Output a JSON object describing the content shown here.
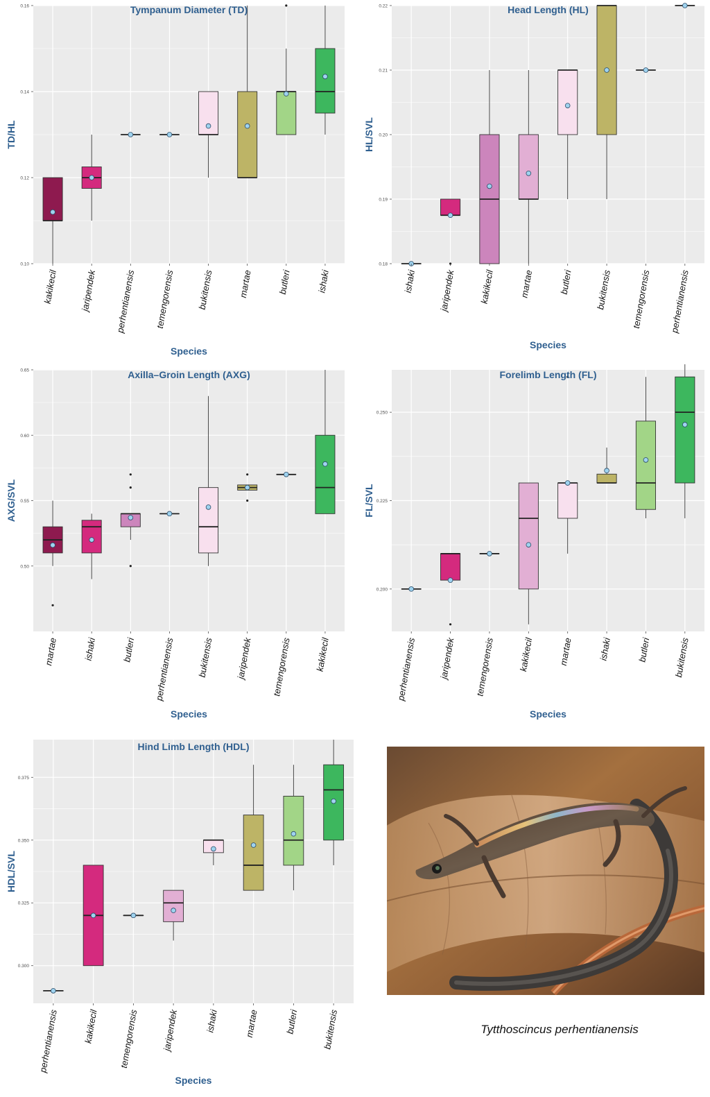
{
  "colors": {
    "panel_bg": "#EBEBEB",
    "grid": "#FFFFFF",
    "title": "#2F5F8F",
    "box_fill": [
      "#8E1A4F",
      "#D42A7E",
      "#CC85BC",
      "#E2AFD4",
      "#F8E0EE",
      "#BDB466",
      "#A2D587",
      "#3DB75E"
    ],
    "mean_point": "#9FD3EF",
    "outlier": "#222222"
  },
  "chart_data": [
    {
      "type": "box",
      "title": "Tympanum Diameter (TD)",
      "xlabel": "Species",
      "ylabel": "TD/HL",
      "ylim": [
        0.1,
        0.16
      ],
      "yticks": [
        0.1,
        0.12,
        0.14,
        0.16
      ],
      "ytick_labels": [
        "0.10",
        "0.12",
        "0.14",
        "0.16"
      ],
      "grid": true,
      "categories": [
        "kakikecil",
        "jaripendek",
        "perhentianensis",
        "temengorensis",
        "bukitensis",
        "martae",
        "butleri",
        "ishaki"
      ],
      "boxes": [
        {
          "min": 0.1,
          "q1": 0.11,
          "median": 0.11,
          "q3": 0.12,
          "max": 0.12,
          "mean": 0.112,
          "outliers": [],
          "color": "#8E1A4F"
        },
        {
          "min": 0.11,
          "q1": 0.1175,
          "median": 0.12,
          "q3": 0.1225,
          "max": 0.13,
          "mean": 0.12,
          "outliers": [],
          "color": "#D42A7E"
        },
        {
          "min": 0.13,
          "q1": 0.13,
          "median": 0.13,
          "q3": 0.13,
          "max": 0.13,
          "mean": 0.13,
          "outliers": [],
          "color": "#CC85BC"
        },
        {
          "min": 0.13,
          "q1": 0.13,
          "median": 0.13,
          "q3": 0.13,
          "max": 0.13,
          "mean": 0.13,
          "outliers": [],
          "color": "#E2AFD4"
        },
        {
          "min": 0.12,
          "q1": 0.13,
          "median": 0.13,
          "q3": 0.14,
          "max": 0.14,
          "mean": 0.132,
          "outliers": [],
          "color": "#F8E0EE"
        },
        {
          "min": 0.12,
          "q1": 0.12,
          "median": 0.12,
          "q3": 0.14,
          "max": 0.16,
          "mean": 0.132,
          "outliers": [],
          "color": "#BDB466"
        },
        {
          "min": 0.13,
          "q1": 0.13,
          "median": 0.14,
          "q3": 0.14,
          "max": 0.15,
          "mean": 0.1395,
          "outliers": [
            0.16
          ],
          "color": "#A2D587"
        },
        {
          "min": 0.13,
          "q1": 0.135,
          "median": 0.14,
          "q3": 0.15,
          "max": 0.16,
          "mean": 0.1435,
          "outliers": [],
          "color": "#3DB75E"
        }
      ]
    },
    {
      "type": "box",
      "title": "Head Length (HL)",
      "xlabel": "Species",
      "ylabel": "HL/SVL",
      "ylim": [
        0.18,
        0.22
      ],
      "yticks": [
        0.18,
        0.19,
        0.2,
        0.21,
        0.22
      ],
      "ytick_labels": [
        "0.18",
        "0.19",
        "0.20",
        "0.21",
        "0.22"
      ],
      "grid": true,
      "categories": [
        "ishaki",
        "jaripendek",
        "kakikecil",
        "martae",
        "butleri",
        "bukitensis",
        "temengorensis",
        "perhentianensis"
      ],
      "boxes": [
        {
          "min": 0.18,
          "q1": 0.18,
          "median": 0.18,
          "q3": 0.18,
          "max": 0.18,
          "mean": 0.18,
          "outliers": [],
          "color": "#8E1A4F"
        },
        {
          "min": 0.1875,
          "q1": 0.1875,
          "median": 0.1875,
          "q3": 0.19,
          "max": 0.19,
          "mean": 0.1875,
          "outliers": [
            0.18
          ],
          "color": "#D42A7E"
        },
        {
          "min": 0.18,
          "q1": 0.18,
          "median": 0.19,
          "q3": 0.2,
          "max": 0.21,
          "mean": 0.192,
          "outliers": [],
          "color": "#CC85BC"
        },
        {
          "min": 0.18,
          "q1": 0.19,
          "median": 0.19,
          "q3": 0.2,
          "max": 0.21,
          "mean": 0.194,
          "outliers": [],
          "color": "#E2AFD4"
        },
        {
          "min": 0.19,
          "q1": 0.2,
          "median": 0.21,
          "q3": 0.21,
          "max": 0.21,
          "mean": 0.2045,
          "outliers": [],
          "color": "#F8E0EE"
        },
        {
          "min": 0.19,
          "q1": 0.2,
          "median": 0.22,
          "q3": 0.22,
          "max": 0.22,
          "mean": 0.21,
          "outliers": [],
          "color": "#BDB466"
        },
        {
          "min": 0.21,
          "q1": 0.21,
          "median": 0.21,
          "q3": 0.21,
          "max": 0.21,
          "mean": 0.21,
          "outliers": [],
          "color": "#A2D587"
        },
        {
          "min": 0.22,
          "q1": 0.22,
          "median": 0.22,
          "q3": 0.22,
          "max": 0.22,
          "mean": 0.22,
          "outliers": [],
          "color": "#3DB75E"
        }
      ]
    },
    {
      "type": "box",
      "title": "Axilla–Groin Length (AXG)",
      "xlabel": "Species",
      "ylabel": "AXG/SVL",
      "ylim": [
        0.45,
        0.65
      ],
      "yticks": [
        0.5,
        0.55,
        0.6,
        0.65
      ],
      "ytick_labels": [
        "0.50",
        "0.55",
        "0.60",
        "0.65"
      ],
      "grid": true,
      "categories": [
        "martae",
        "ishaki",
        "butleri",
        "perhentianensis",
        "bukitensis",
        "jaripendek",
        "temengorensis",
        "kakikecil"
      ],
      "boxes": [
        {
          "min": 0.5,
          "q1": 0.51,
          "median": 0.52,
          "q3": 0.53,
          "max": 0.55,
          "mean": 0.516,
          "outliers": [
            0.47
          ],
          "color": "#8E1A4F"
        },
        {
          "min": 0.49,
          "q1": 0.51,
          "median": 0.53,
          "q3": 0.535,
          "max": 0.54,
          "mean": 0.52,
          "outliers": [],
          "color": "#D42A7E"
        },
        {
          "min": 0.52,
          "q1": 0.53,
          "median": 0.54,
          "q3": 0.54,
          "max": 0.54,
          "mean": 0.537,
          "outliers": [
            0.57,
            0.56,
            0.5
          ],
          "color": "#CC85BC"
        },
        {
          "min": 0.54,
          "q1": 0.54,
          "median": 0.54,
          "q3": 0.54,
          "max": 0.54,
          "mean": 0.54,
          "outliers": [],
          "color": "#E2AFD4"
        },
        {
          "min": 0.5,
          "q1": 0.51,
          "median": 0.53,
          "q3": 0.56,
          "max": 0.63,
          "mean": 0.545,
          "outliers": [],
          "color": "#F8E0EE"
        },
        {
          "min": 0.558,
          "q1": 0.558,
          "median": 0.56,
          "q3": 0.562,
          "max": 0.562,
          "mean": 0.56,
          "outliers": [
            0.57,
            0.55
          ],
          "color": "#BDB466"
        },
        {
          "min": 0.57,
          "q1": 0.57,
          "median": 0.57,
          "q3": 0.57,
          "max": 0.57,
          "mean": 0.57,
          "outliers": [],
          "color": "#A2D587"
        },
        {
          "min": 0.54,
          "q1": 0.54,
          "median": 0.56,
          "q3": 0.6,
          "max": 0.65,
          "mean": 0.578,
          "outliers": [],
          "color": "#3DB75E"
        }
      ]
    },
    {
      "type": "box",
      "title": "Forelimb Length (FL)",
      "xlabel": "Species",
      "ylabel": "FL/SVL",
      "ylim": [
        0.188,
        0.262
      ],
      "yticks": [
        0.2,
        0.225,
        0.25
      ],
      "ytick_labels": [
        "0.200",
        "0.225",
        "0.250"
      ],
      "grid": true,
      "categories": [
        "perhentianensis",
        "jaripendek",
        "temengorensis",
        "kakikecil",
        "martae",
        "ishaki",
        "butleri",
        "bukitensis"
      ],
      "boxes": [
        {
          "min": 0.2,
          "q1": 0.2,
          "median": 0.2,
          "q3": 0.2,
          "max": 0.2,
          "mean": 0.2,
          "outliers": [],
          "color": "#8E1A4F"
        },
        {
          "min": 0.2025,
          "q1": 0.2025,
          "median": 0.21,
          "q3": 0.21,
          "max": 0.21,
          "mean": 0.2025,
          "outliers": [
            0.19
          ],
          "color": "#D42A7E"
        },
        {
          "min": 0.21,
          "q1": 0.21,
          "median": 0.21,
          "q3": 0.21,
          "max": 0.21,
          "mean": 0.21,
          "outliers": [],
          "color": "#CC85BC"
        },
        {
          "min": 0.19,
          "q1": 0.2,
          "median": 0.22,
          "q3": 0.23,
          "max": 0.23,
          "mean": 0.2125,
          "outliers": [],
          "color": "#E2AFD4"
        },
        {
          "min": 0.21,
          "q1": 0.22,
          "median": 0.23,
          "q3": 0.23,
          "max": 0.23,
          "mean": 0.23,
          "outliers": [
            0.26
          ],
          "color": "#F8E0EE"
        },
        {
          "min": 0.23,
          "q1": 0.23,
          "median": 0.23,
          "q3": 0.2325,
          "max": 0.24,
          "mean": 0.2335,
          "outliers": [],
          "color": "#BDB466"
        },
        {
          "min": 0.22,
          "q1": 0.2225,
          "median": 0.23,
          "q3": 0.2475,
          "max": 0.26,
          "mean": 0.2365,
          "outliers": [],
          "color": "#A2D587"
        },
        {
          "min": 0.22,
          "q1": 0.23,
          "median": 0.25,
          "q3": 0.26,
          "max": 0.265,
          "mean": 0.2465,
          "outliers": [],
          "color": "#3DB75E"
        }
      ]
    },
    {
      "type": "box",
      "title": "Hind Limb Length (HDL)",
      "xlabel": "Species",
      "ylabel": "HDL/SVL",
      "ylim": [
        0.285,
        0.39
      ],
      "yticks": [
        0.3,
        0.325,
        0.35,
        0.375
      ],
      "ytick_labels": [
        "0.300",
        "0.325",
        "0.350",
        "0.375"
      ],
      "grid": true,
      "categories": [
        "perhentianensis",
        "kakikecil",
        "temengorensis",
        "jaripendek",
        "ishaki",
        "martae",
        "butleri",
        "bukitensis"
      ],
      "boxes": [
        {
          "min": 0.29,
          "q1": 0.29,
          "median": 0.29,
          "q3": 0.29,
          "max": 0.29,
          "mean": 0.29,
          "outliers": [],
          "color": "#8E1A4F"
        },
        {
          "min": 0.3,
          "q1": 0.3,
          "median": 0.32,
          "q3": 0.34,
          "max": 0.34,
          "mean": 0.32,
          "outliers": [],
          "color": "#D42A7E"
        },
        {
          "min": 0.32,
          "q1": 0.32,
          "median": 0.32,
          "q3": 0.32,
          "max": 0.32,
          "mean": 0.32,
          "outliers": [],
          "color": "#CC85BC"
        },
        {
          "min": 0.31,
          "q1": 0.3175,
          "median": 0.325,
          "q3": 0.33,
          "max": 0.33,
          "mean": 0.322,
          "outliers": [],
          "color": "#E2AFD4"
        },
        {
          "min": 0.34,
          "q1": 0.345,
          "median": 0.35,
          "q3": 0.35,
          "max": 0.35,
          "mean": 0.3465,
          "outliers": [],
          "color": "#F8E0EE"
        },
        {
          "min": 0.33,
          "q1": 0.33,
          "median": 0.34,
          "q3": 0.36,
          "max": 0.38,
          "mean": 0.348,
          "outliers": [],
          "color": "#BDB466"
        },
        {
          "min": 0.33,
          "q1": 0.34,
          "median": 0.35,
          "q3": 0.3675,
          "max": 0.38,
          "mean": 0.3525,
          "outliers": [],
          "color": "#A2D587"
        },
        {
          "min": 0.34,
          "q1": 0.35,
          "median": 0.37,
          "q3": 0.38,
          "max": 0.39,
          "mean": 0.3655,
          "outliers": [],
          "color": "#3DB75E"
        }
      ]
    }
  ],
  "photo": {
    "caption": "Tytthoscincus perhentianensis"
  }
}
